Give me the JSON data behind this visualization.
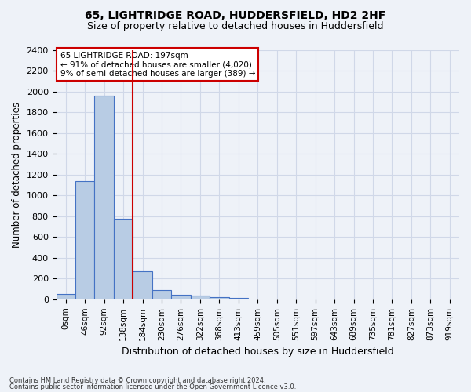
{
  "title_line1": "65, LIGHTRIDGE ROAD, HUDDERSFIELD, HD2 2HF",
  "title_line2": "Size of property relative to detached houses in Huddersfield",
  "xlabel": "Distribution of detached houses by size in Huddersfield",
  "ylabel": "Number of detached properties",
  "footer_line1": "Contains HM Land Registry data © Crown copyright and database right 2024.",
  "footer_line2": "Contains public sector information licensed under the Open Government Licence v3.0.",
  "bin_labels": [
    "0sqm",
    "46sqm",
    "92sqm",
    "138sqm",
    "184sqm",
    "230sqm",
    "276sqm",
    "322sqm",
    "368sqm",
    "413sqm",
    "459sqm",
    "505sqm",
    "551sqm",
    "597sqm",
    "643sqm",
    "689sqm",
    "735sqm",
    "781sqm",
    "827sqm",
    "873sqm",
    "919sqm"
  ],
  "bar_values": [
    50,
    1140,
    1960,
    780,
    270,
    90,
    45,
    40,
    25,
    10,
    0,
    0,
    0,
    0,
    0,
    0,
    0,
    0,
    0,
    0,
    0
  ],
  "bar_color": "#b8cce4",
  "bar_edge_color": "#4472c4",
  "grid_color": "#d0d8e8",
  "vline_x": 3.48,
  "vline_color": "#cc0000",
  "annotation_text": "65 LIGHTRIDGE ROAD: 197sqm\n← 91% of detached houses are smaller (4,020)\n9% of semi-detached houses are larger (389) →",
  "annotation_box_color": "#ffffff",
  "annotation_box_edge": "#cc0000",
  "ylim": [
    0,
    2400
  ],
  "yticks": [
    0,
    200,
    400,
    600,
    800,
    1000,
    1200,
    1400,
    1600,
    1800,
    2000,
    2200,
    2400
  ],
  "background_color": "#eef2f8",
  "title_fontsize": 10,
  "subtitle_fontsize": 9,
  "ylabel_fontsize": 8.5,
  "xlabel_fontsize": 9,
  "tick_fontsize": 8,
  "xtick_fontsize": 7.5,
  "annotation_fontsize": 7.5,
  "footer_fontsize": 6.0
}
